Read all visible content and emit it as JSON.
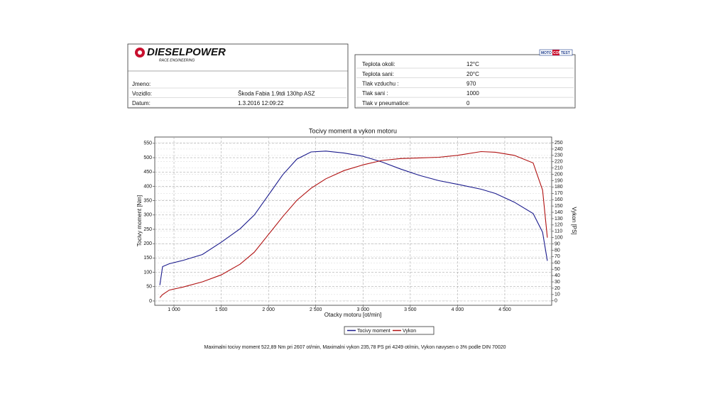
{
  "header": {
    "logo": "DIESELPOWER",
    "logo_sub": "RACE ENGINEERING",
    "badge": [
      "MOTO",
      "COM",
      "TEST"
    ]
  },
  "vehicle_info": [
    [
      "Jmeno:"
    ],
    [
      "Vozidlo:",
      "Škoda Fabia 1.9tdi 130hp ASZ"
    ],
    [
      "Datum:",
      "1.3.2016 12:09:22"
    ]
  ],
  "conditions": [
    [
      "Teplota okoli:",
      "12°C"
    ],
    [
      "Teplota sani:",
      "20°C"
    ],
    [
      "Tlak vzduchu :",
      "970"
    ],
    [
      "Tlak sani :",
      "1000"
    ],
    [
      "Tlak v pneumatice:",
      "0"
    ]
  ],
  "chart_data": {
    "type": "line",
    "title": "Tocivy moment a vykon motoru",
    "x_label": "Otacky motoru [ot/min]",
    "y_label": "Tocivy moment [Nm]",
    "y2_label": "Vykon [PS]",
    "x": [
      850,
      880,
      950,
      1100,
      1300,
      1500,
      1700,
      1850,
      2000,
      2150,
      2300,
      2450,
      2607,
      2800,
      3000,
      3200,
      3400,
      3600,
      3800,
      4000,
      4249,
      4400,
      4600,
      4800,
      4900,
      4950
    ],
    "xlim": [
      797,
      4996
    ],
    "xticks": [
      {
        "value": 1000,
        "label": "1 000"
      },
      {
        "value": 1500,
        "label": "1 500"
      },
      {
        "value": 2000,
        "label": "2 000"
      },
      {
        "value": 2500,
        "label": "2 500"
      },
      {
        "value": 3000,
        "label": "3 000"
      },
      {
        "value": 3500,
        "label": "3 500"
      },
      {
        "value": 4000,
        "label": "4 000"
      },
      {
        "value": 4500,
        "label": "4 500"
      }
    ],
    "ylim": [
      -15,
      572
    ],
    "yticks": [
      0,
      50,
      100,
      150,
      200,
      250,
      300,
      350,
      400,
      450,
      500,
      550
    ],
    "y2lim": [
      -7,
      259
    ],
    "y2ticks": [
      0,
      10,
      20,
      30,
      40,
      50,
      60,
      70,
      80,
      90,
      100,
      110,
      120,
      130,
      140,
      150,
      160,
      170,
      180,
      190,
      200,
      210,
      220,
      230,
      240,
      250
    ],
    "series": [
      {
        "name": "Tocivy moment",
        "color": "#1a1a8c",
        "values": [
          55,
          120,
          130,
          142,
          162,
          205,
          252,
          300,
          370,
          440,
          495,
          520,
          523,
          516,
          505,
          485,
          460,
          438,
          420,
          407,
          390,
          375,
          345,
          305,
          240,
          140
        ]
      },
      {
        "name": "Vykon",
        "color": "#b01010",
        "axis": "y2",
        "values": [
          5,
          10,
          17,
          22,
          30,
          41,
          58,
          77,
          105,
          133,
          159,
          178,
          193,
          206,
          215,
          222,
          225,
          226,
          227,
          230,
          236,
          235,
          230,
          218,
          175,
          100
        ]
      }
    ],
    "grid": true,
    "legend": "bottom"
  },
  "footer": "Maximalni tocivy moment 522,89 Nm pri 2607 ot/min,  Maximalni vykon 235,78 PS pri 4249 ot/min,  Vykon navysen o 3% podle DIN 70020"
}
